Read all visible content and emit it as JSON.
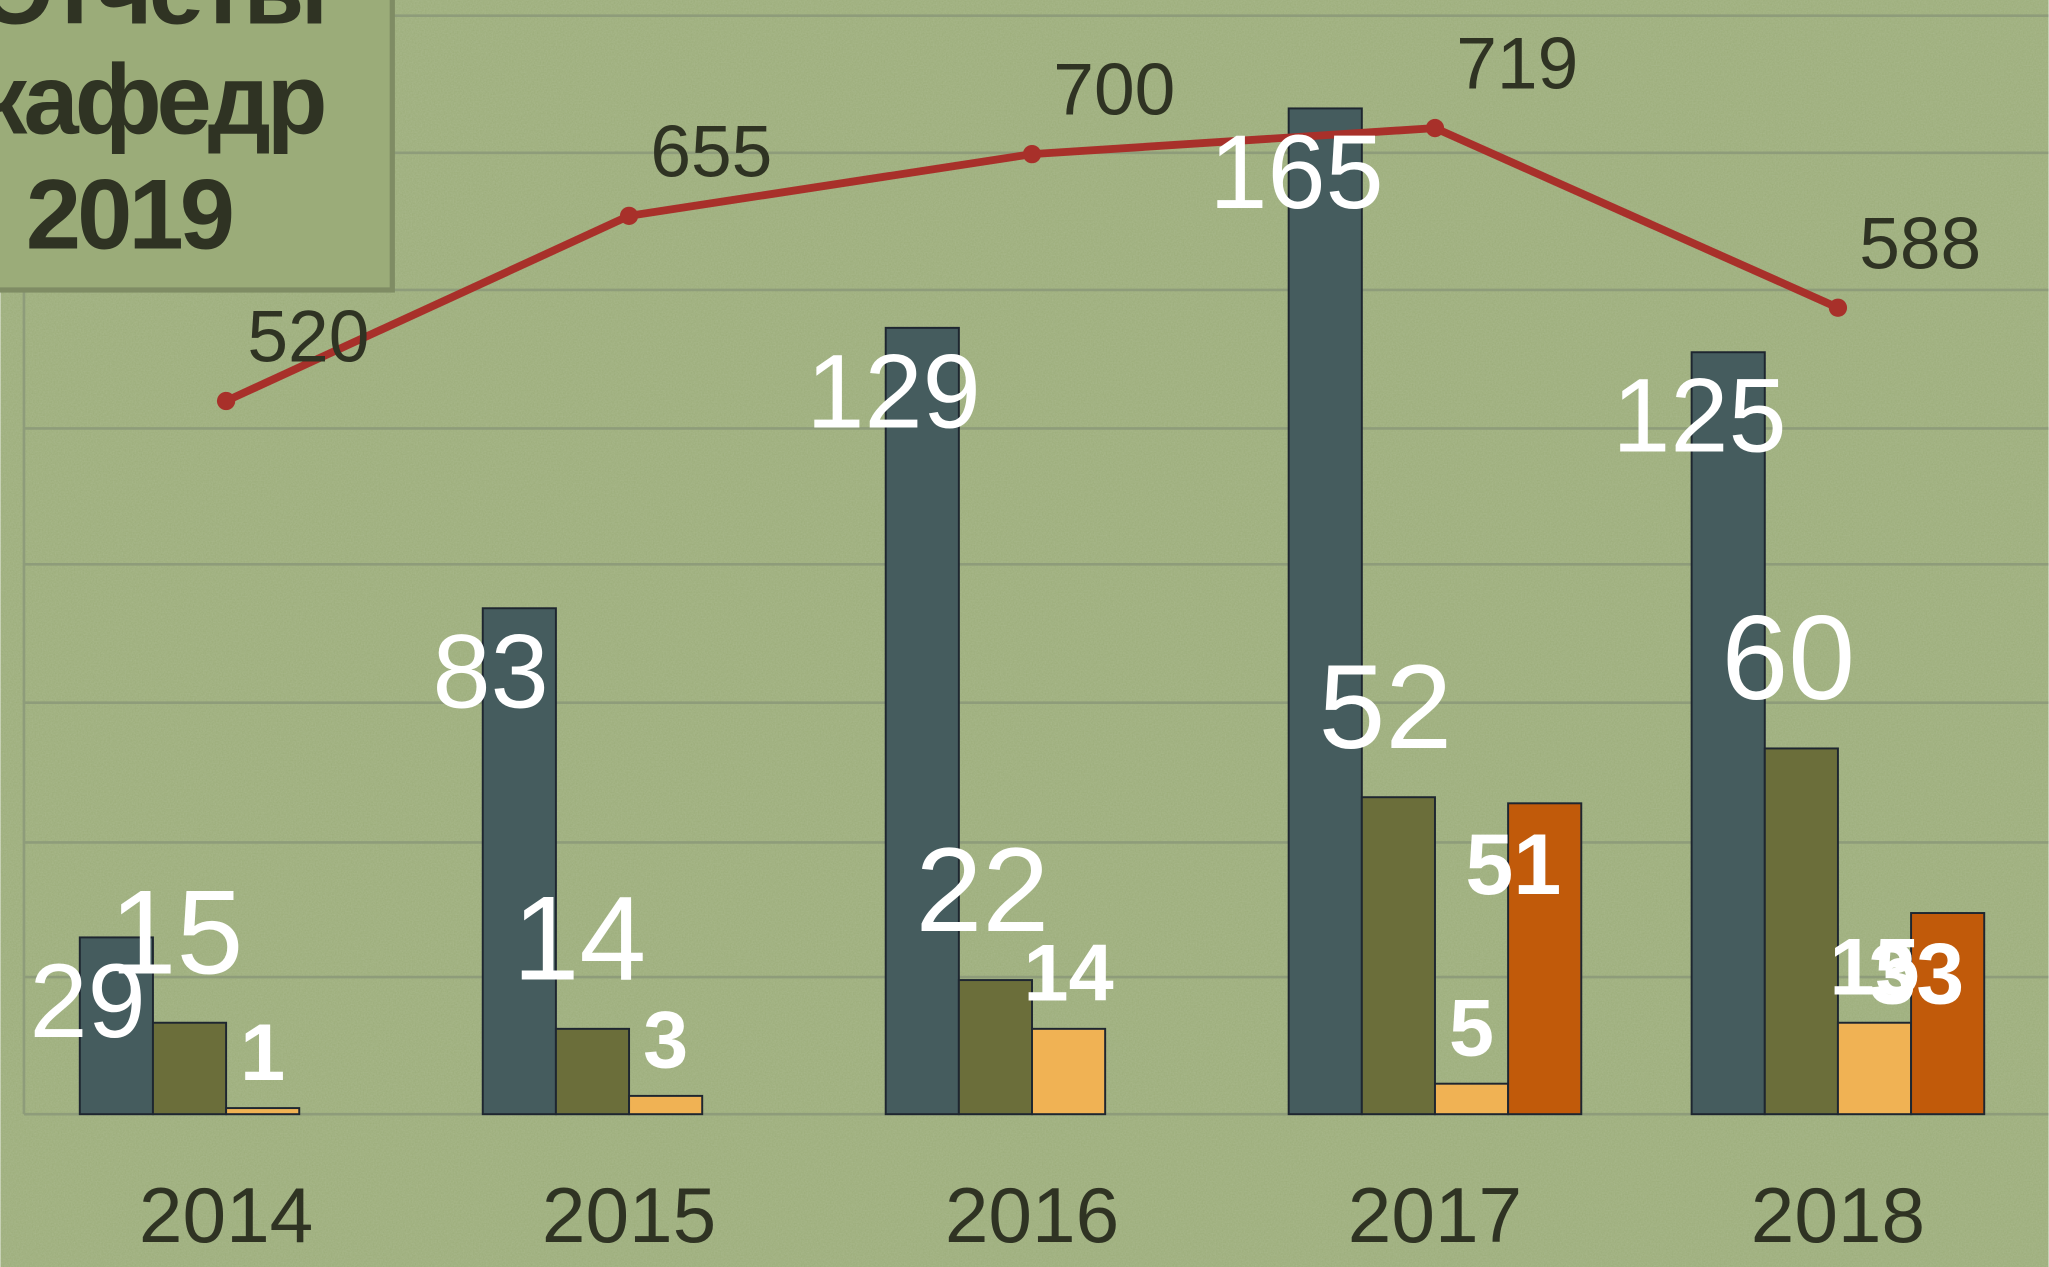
{
  "chart_data": {
    "type": "bar",
    "title": [
      "Отчеты",
      "кафедр",
      "2019"
    ],
    "categories": [
      "2014",
      "2015",
      "2016",
      "2017",
      "2018"
    ],
    "ylim": [
      0,
      180
    ],
    "y2lim": [
      0,
      800
    ],
    "series": [
      {
        "color": "#455c5e",
        "values": [
          29,
          83,
          129,
          165,
          125
        ]
      },
      {
        "color": "#6b6e3a",
        "values": [
          15,
          14,
          22,
          52,
          60
        ]
      },
      {
        "color": "#f0b254",
        "values": [
          1,
          3,
          14,
          5,
          15
        ]
      },
      {
        "color": "#c15a0a",
        "values": [
          null,
          null,
          null,
          51,
          33
        ]
      },
      {
        "type": "line",
        "axis": "y2",
        "color": "#a8302a",
        "values": [
          520,
          655,
          700,
          719,
          588
        ]
      }
    ]
  }
}
